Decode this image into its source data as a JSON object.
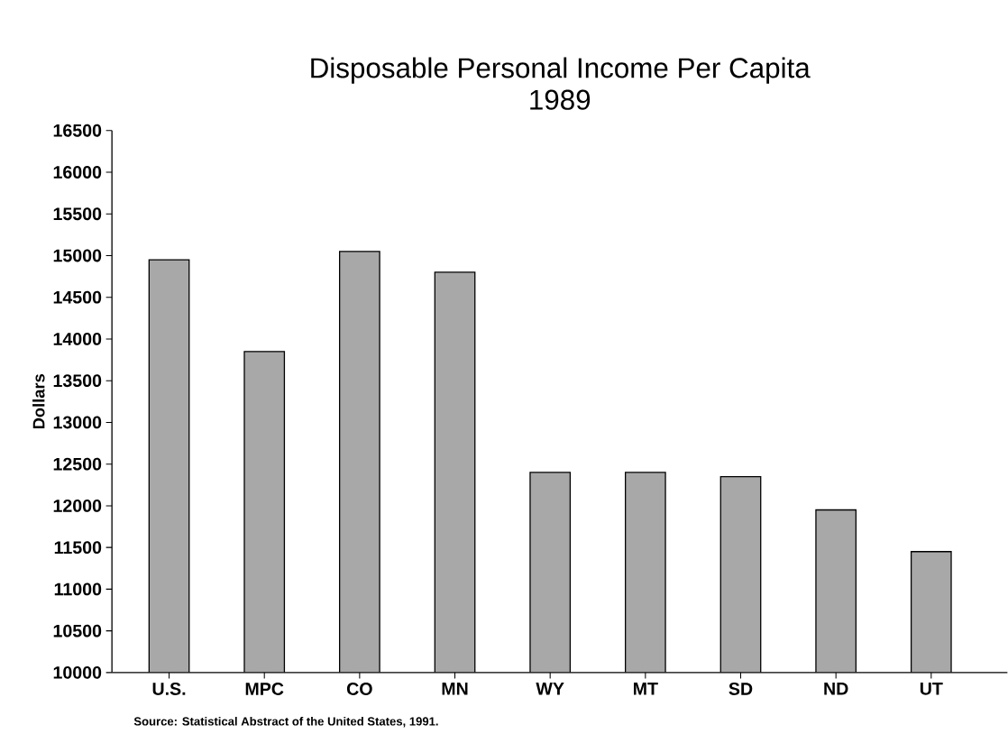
{
  "chart_data": {
    "type": "bar",
    "title": "Disposable Personal Income Per Capita",
    "subtitle": "1989",
    "ylabel": "Dollars",
    "categories": [
      "U.S.",
      "MPC",
      "CO",
      "MN",
      "WY",
      "MT",
      "SD",
      "ND",
      "UT"
    ],
    "values": [
      14950,
      13850,
      15050,
      14800,
      12400,
      12400,
      12350,
      11950,
      11450
    ],
    "color": "#a8a8a8",
    "ylim": [
      10000,
      16500
    ],
    "yticks": [
      10000,
      10500,
      11000,
      11500,
      12000,
      12500,
      13000,
      13500,
      14000,
      14500,
      15000,
      15500,
      16000,
      16500
    ],
    "annotations": [
      "Source:  Statistical Abstract of the United States, 1991."
    ]
  }
}
